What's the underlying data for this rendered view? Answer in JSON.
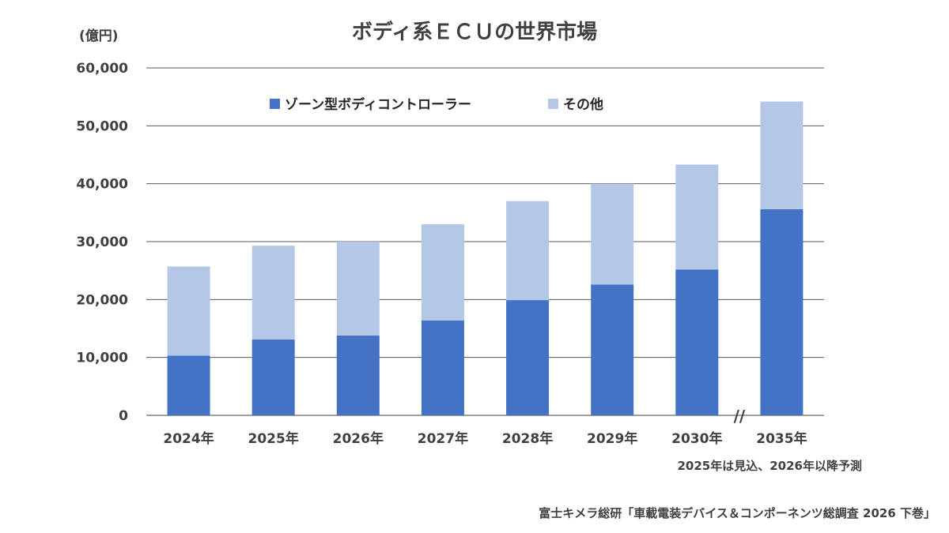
{
  "chart_data": {
    "type": "bar",
    "stacked": true,
    "title": "ボディ系ＥＣＵの世界市場",
    "unit_label": "(億円)",
    "categories": [
      "2024年",
      "2025年",
      "2026年",
      "2027年",
      "2028年",
      "2029年",
      "2030年",
      "2035年"
    ],
    "series": [
      {
        "name": "ゾーン型ボディコントローラー",
        "color": "#4472C4",
        "values": [
          10300,
          13100,
          13800,
          16400,
          19900,
          22600,
          25200,
          35600
        ]
      },
      {
        "name": "その他",
        "color": "#B4C7E7",
        "values": [
          15400,
          16200,
          16200,
          16600,
          17100,
          17400,
          18100,
          18600
        ]
      }
    ],
    "ylim": [
      0,
      60000
    ],
    "yticks": [
      "0",
      "10,000",
      "20,000",
      "30,000",
      "40,000",
      "50,000",
      "60,000"
    ],
    "ytick_values": [
      0,
      10000,
      20000,
      30000,
      40000,
      50000,
      60000
    ],
    "grid": true,
    "axis_break_symbol": "//",
    "legend_position": "top",
    "note": "2025年は見込、2026年以降予測",
    "source": "富士キメラ総研「車載電装デバイス＆コンポーネンツ総調査 2026 下巻」"
  }
}
